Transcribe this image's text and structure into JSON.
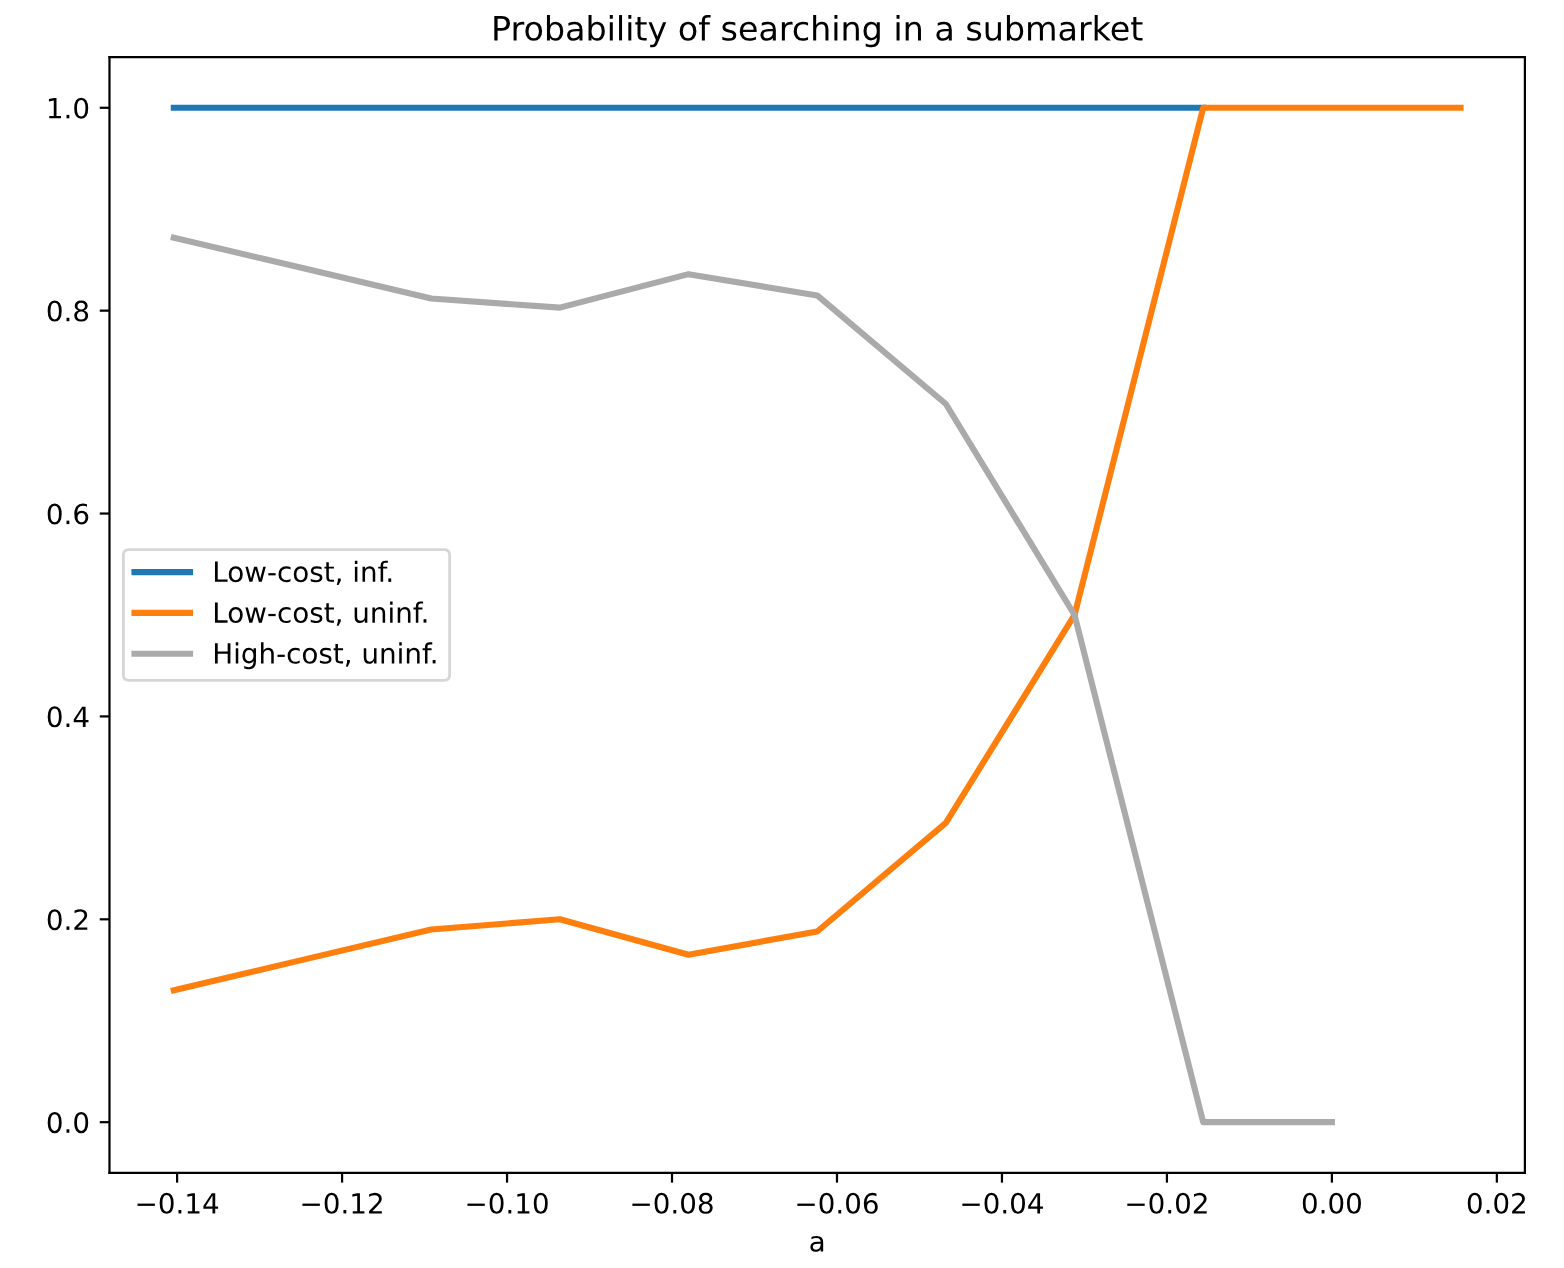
{
  "chart_data": {
    "type": "line",
    "title": "Probability of searching in a submarket",
    "xlabel": "a",
    "x": [
      -0.1404,
      -0.1248,
      -0.1092,
      -0.0936,
      -0.078,
      -0.0624,
      -0.0468,
      -0.0312,
      -0.0156,
      0,
      0.0156
    ],
    "series": [
      {
        "name": "Low-cost, inf.",
        "color": "#1f77b4",
        "values": [
          1.0,
          1.0,
          1.0,
          1.0,
          1.0,
          1.0,
          1.0,
          1.0,
          1.0,
          null,
          null
        ]
      },
      {
        "name": "Low-cost, uninf.",
        "color": "#ff7f0e",
        "values": [
          0.13,
          0.16,
          0.19,
          0.2,
          0.165,
          0.188,
          0.295,
          0.5,
          1.0,
          1.0,
          1.0
        ]
      },
      {
        "name": "High-cost, uninf.",
        "color": "#aaaaaa",
        "values": [
          0.872,
          0.842,
          0.812,
          0.803,
          0.836,
          0.815,
          0.708,
          0.5,
          0.0,
          0.0,
          null
        ]
      }
    ],
    "xlim": [
      -0.1482,
      0.0234
    ],
    "xticks": [
      {
        "value": -0.14,
        "label": "−0.14"
      },
      {
        "value": -0.12,
        "label": "−0.12"
      },
      {
        "value": -0.1,
        "label": "−0.10"
      },
      {
        "value": -0.08,
        "label": "−0.08"
      },
      {
        "value": -0.06,
        "label": "−0.06"
      },
      {
        "value": -0.04,
        "label": "−0.04"
      },
      {
        "value": -0.02,
        "label": "−0.02"
      },
      {
        "value": 0,
        "label": "0.00"
      },
      {
        "value": 0.02,
        "label": "0.02"
      }
    ],
    "ylim": [
      -0.05,
      1.05
    ],
    "yticks": [
      {
        "value": 0,
        "label": "0.0"
      },
      {
        "value": 0.2,
        "label": "0.2"
      },
      {
        "value": 0.4,
        "label": "0.4"
      },
      {
        "value": 0.6,
        "label": "0.6"
      },
      {
        "value": 0.8,
        "label": "0.8"
      },
      {
        "value": 1.0,
        "label": "1.0"
      }
    ],
    "grid": false,
    "legend": "center left",
    "line_style": "solid",
    "marker": "none"
  }
}
